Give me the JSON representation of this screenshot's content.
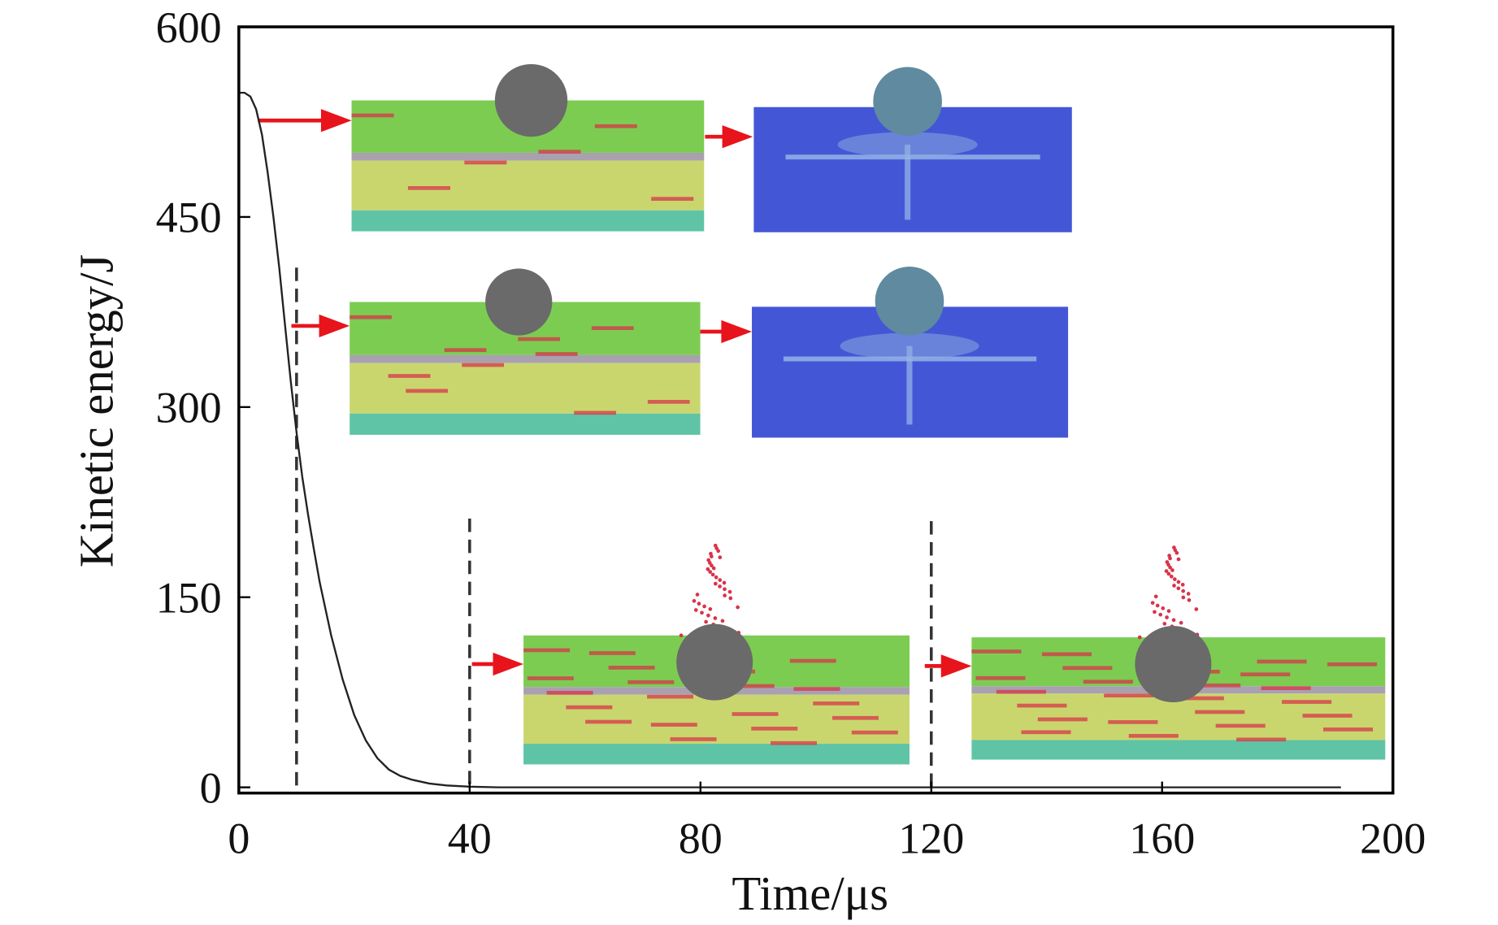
{
  "chart_data": {
    "type": "line",
    "title": "",
    "xlabel": "Time/μs",
    "ylabel": "Kinetic energy/J",
    "xlim": [
      0,
      200
    ],
    "ylim": [
      0,
      600
    ],
    "xticks": [
      0,
      40,
      80,
      120,
      160,
      200
    ],
    "yticks": [
      0,
      150,
      300,
      450,
      600
    ],
    "grid": false,
    "series": [
      {
        "name": "Kinetic energy",
        "color": "#222222",
        "x": [
          0,
          1,
          2,
          3,
          4,
          5,
          6,
          7,
          8,
          9,
          10,
          11,
          12,
          13,
          14,
          16,
          18,
          20,
          22,
          24,
          26,
          28,
          30,
          33,
          36,
          40,
          45,
          60,
          100,
          150,
          191
        ],
        "y": [
          548,
          548,
          545,
          535,
          515,
          485,
          450,
          410,
          365,
          320,
          280,
          245,
          215,
          188,
          162,
          120,
          85,
          57,
          37,
          23,
          14,
          9,
          6,
          3,
          1.5,
          0.5,
          0,
          0,
          0,
          0,
          0
        ]
      }
    ],
    "markers": [
      {
        "x": 10,
        "y_top": 410
      },
      {
        "x": 40,
        "y_top": 212
      },
      {
        "x": 120,
        "y_top": 210
      }
    ],
    "colors": {
      "green": "#7ccc52",
      "yellow": "#c9d66e",
      "teal": "#5fc4a6",
      "interlayer": "#a9a0b0",
      "blue": "#4357d6",
      "damage": "#d8344a",
      "sphere": "#6a6a6a",
      "arrow": "#e8141c"
    }
  }
}
